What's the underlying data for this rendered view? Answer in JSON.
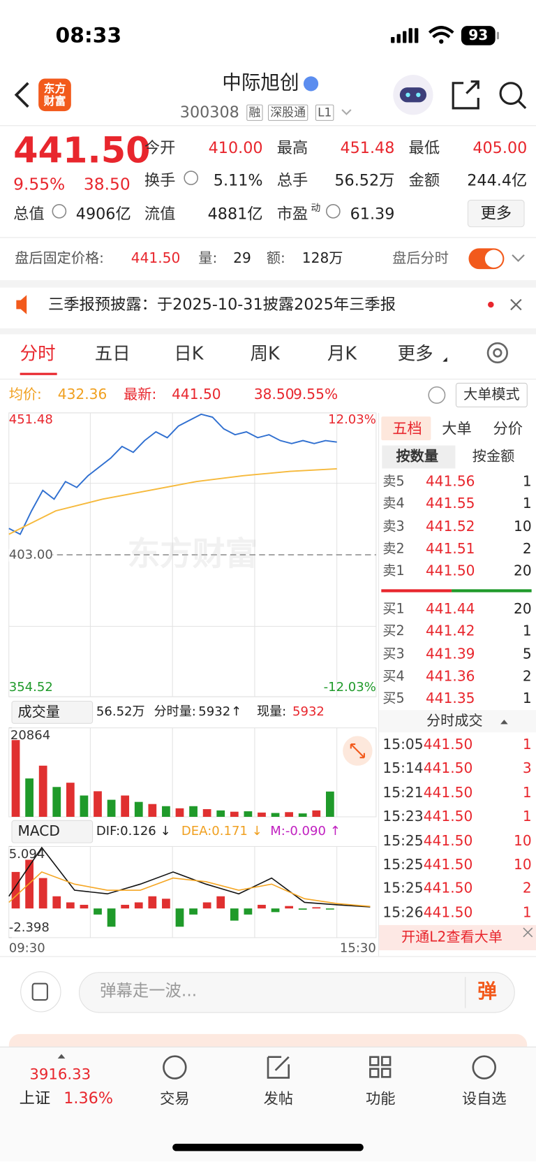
{
  "status_bar": {
    "time": "08:33",
    "battery": "93"
  },
  "header": {
    "logo": "东方财富",
    "name": "中际旭创",
    "code": "300308",
    "tags": [
      "融",
      "深股通",
      "L1"
    ]
  },
  "quote": {
    "price": "441.50",
    "change_pct": "9.55%",
    "change": "38.50",
    "fields": [
      [
        "今开",
        "410.00"
      ],
      [
        "最高",
        "451.48"
      ],
      [
        "最低",
        "405.00"
      ],
      [
        "换手",
        "5.11%"
      ],
      [
        "总手",
        "56.52万"
      ],
      [
        "金额",
        "244.4亿"
      ],
      [
        "总值",
        "4906亿"
      ],
      [
        "流值",
        "4881亿"
      ],
      [
        "市盈",
        "61.39"
      ]
    ],
    "pe_sup": "动",
    "more": "更多"
  },
  "after_hours": {
    "label": "盘后固定价格:",
    "price": "441.50",
    "volume_label": "量:",
    "volume": "29",
    "amount_label": "额:",
    "amount": "128万",
    "toggle": "盘后分时"
  },
  "notice": "三季报预披露：于2025-10-31披露2025年三季报",
  "tabs": [
    "分时",
    "五日",
    "日K",
    "周K",
    "月K",
    "更多"
  ],
  "info": {
    "avg_label": "均价:",
    "avg": "432.36",
    "last_label": "最新:",
    "last": "441.50",
    "change": "38.50",
    "change_pct": "9.55%",
    "mode": "大单模式"
  },
  "price_chart": {
    "type": "line",
    "watermark": "东方财富",
    "ylim": [
      354.52,
      451.48
    ],
    "yticks": [
      451.48,
      {
        "value": 403,
        "label": "403.00"
      },
      354.52
    ],
    "y2lim": [
      -12.03,
      12.03
    ],
    "y2ticks": [
      {
        "value": 12.03,
        "label": "12.03%"
      },
      {
        "value": -12.03,
        "label": "-12.03%"
      }
    ],
    "xticks": [
      "09:30",
      "15:30"
    ],
    "series": [
      {
        "color": "#2f6fd0",
        "values": [
          412,
          410,
          418,
          425,
          422,
          428,
          426,
          430,
          433,
          436,
          440,
          438,
          442,
          445,
          443,
          447,
          449,
          451,
          450,
          446,
          444,
          445,
          443,
          444,
          442,
          441,
          442,
          441,
          442,
          441.5
        ]
      },
      {
        "color": "#f6b93b",
        "values": [
          410,
          418,
          422,
          425,
          428,
          430,
          431.5,
          432.36
        ]
      }
    ]
  },
  "volume_chart": {
    "type": "bar",
    "header": "成交量",
    "total": "56.52万",
    "current_label": "分时量:",
    "current": "5932",
    "arrow": "↑",
    "now_label": "现量:",
    "now": "5932",
    "ylim": [
      0,
      20864
    ],
    "yticks": [
      20864
    ],
    "colors": [
      "#e03030",
      "#1f9a2a"
    ],
    "values": [
      18000,
      9000,
      12000,
      7000,
      8000,
      5000,
      6000,
      4000,
      5000,
      3500,
      3000,
      2500,
      2000,
      2500,
      1800,
      1500,
      1200,
      1300,
      1000,
      900,
      1100,
      800,
      1500,
      5932
    ]
  },
  "macd_chart": {
    "type": "macd",
    "label": "MACD",
    "dif_label": "DIF:0.126 ↓",
    "dea_label": "DEA:0.171 ↓",
    "m_label": "M:-0.090 ↑",
    "ylim": [
      -2.398,
      5.094
    ],
    "yticks": [
      5.094,
      -2.398
    ],
    "colors": {
      "up": "#e03030",
      "down": "#1f9a2a",
      "dif": "#111111",
      "dea": "#f5a623"
    },
    "histogram": [
      3,
      4,
      2.5,
      1,
      0.5,
      0.3,
      -0.5,
      -1.5,
      0.3,
      0.5,
      1,
      0.8,
      -1.5,
      -0.5,
      0.5,
      1,
      -1,
      -0.5,
      0.3,
      -0.3,
      0.2,
      -0.1,
      0.1,
      -0.09
    ],
    "dif": [
      1,
      5,
      1.5,
      1.2,
      2,
      3,
      2,
      1.2,
      2.5,
      0.5,
      0.3,
      0.126
    ],
    "dea": [
      0.5,
      3,
      2,
      1.5,
      1.5,
      2.5,
      2.2,
      1.5,
      2,
      0.8,
      0.4,
      0.171
    ]
  },
  "order_book": {
    "tabs": [
      "五档",
      "大单",
      "分价"
    ],
    "subtabs": [
      "按数量",
      "按金额"
    ],
    "asks": [
      [
        "卖5",
        "441.56",
        "1"
      ],
      [
        "卖4",
        "441.55",
        "1"
      ],
      [
        "卖3",
        "441.52",
        "10"
      ],
      [
        "卖2",
        "441.51",
        "2"
      ],
      [
        "卖1",
        "441.50",
        "20"
      ]
    ],
    "bids": [
      [
        "买1",
        "441.44",
        "20"
      ],
      [
        "买2",
        "441.42",
        "1"
      ],
      [
        "买3",
        "441.39",
        "5"
      ],
      [
        "买4",
        "441.36",
        "2"
      ],
      [
        "买5",
        "441.35",
        "1"
      ]
    ]
  },
  "trades": {
    "title": "分时成交",
    "rows": [
      [
        "15:05",
        "441.50",
        "1"
      ],
      [
        "15:14",
        "441.50",
        "3"
      ],
      [
        "15:21",
        "441.50",
        "1"
      ],
      [
        "15:23",
        "441.50",
        "1"
      ],
      [
        "15:25",
        "441.50",
        "10"
      ],
      [
        "15:25",
        "441.50",
        "10"
      ],
      [
        "15:25",
        "441.50",
        "2"
      ],
      [
        "15:26",
        "441.50",
        "1"
      ]
    ],
    "upgrade": "开通L2查看大单"
  },
  "comment": {
    "placeholder": "弹幕走一波...",
    "button": "弹"
  },
  "nav": {
    "index_value": "3916.33",
    "index_name": "上证",
    "index_change": "1.36%",
    "items": [
      "交易",
      "发帖",
      "功能",
      "设自选"
    ]
  }
}
